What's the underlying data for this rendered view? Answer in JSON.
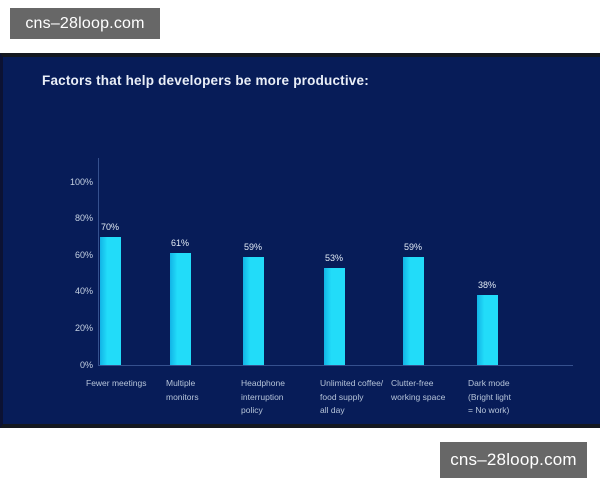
{
  "watermark": {
    "label": "cns–28loop.com"
  },
  "panel": {
    "title": "Factors that help developers be more productive:"
  },
  "colors": {
    "panel_bg": "#071c58",
    "panel_edge": "#141820",
    "bar": "#22dcf9",
    "bar_edge": "#12b4e6",
    "axis": "#35508e",
    "title_text": "#e9eef7",
    "tick_text": "#c6d2e3",
    "value_text": "#e2ebf5",
    "category_text": "#b6c4d9",
    "watermark_bg": "#676767",
    "watermark_text": "#ffffff"
  },
  "chart_data": {
    "type": "bar",
    "title": "Factors that help developers be more productive:",
    "categories": [
      "Fewer meetings",
      "Multiple monitors",
      "Headphone interruption policy",
      "Unlimited coffee/ food supply all day",
      "Clutter-free working space",
      "Dark mode (Bright light = No work)"
    ],
    "category_display_lines": [
      [
        "Fewer meetings"
      ],
      [
        "Multiple",
        "monitors"
      ],
      [
        "Headphone",
        "interruption",
        "policy"
      ],
      [
        "Unlimited coffee/",
        "food supply",
        "all day"
      ],
      [
        "Clutter-free",
        "working space"
      ],
      [
        "Dark mode",
        "(Bright light",
        "= No work)"
      ]
    ],
    "values": [
      70,
      61,
      59,
      53,
      59,
      38
    ],
    "value_labels": [
      "70%",
      "61%",
      "59%",
      "53%",
      "59%",
      "38%"
    ],
    "yticks": [
      {
        "pct": 0,
        "label": "0%"
      },
      {
        "pct": 20,
        "label": "20%"
      },
      {
        "pct": 40,
        "label": "40%"
      },
      {
        "pct": 60,
        "label": "60%"
      },
      {
        "pct": 80,
        "label": "80%"
      },
      {
        "pct": 100,
        "label": "100%"
      }
    ],
    "ylim": [
      0,
      100
    ],
    "xlabel": "",
    "ylabel": "",
    "grid": false,
    "legend": false,
    "bar_color": "#22dcf9",
    "background": "#071c58"
  }
}
